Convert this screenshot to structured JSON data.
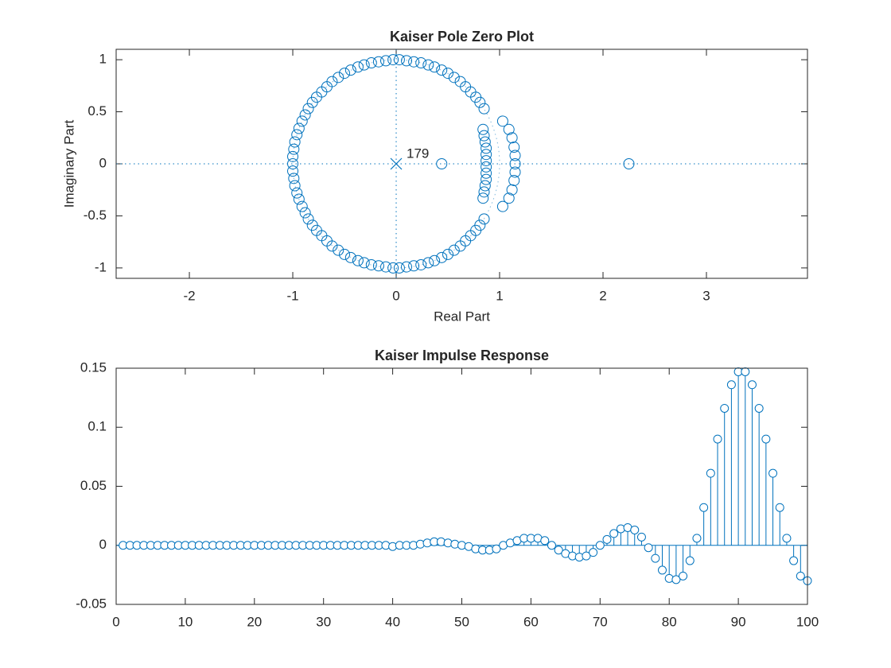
{
  "chart_data": [
    {
      "type": "pole-zero",
      "title": "Kaiser Pole Zero Plot",
      "xlabel": "Real Part",
      "ylabel": "Imaginary Part",
      "color": "#0072bd",
      "zeros": {
        "x": [
          0.85,
          0.81,
          0.77,
          0.72,
          0.67,
          0.62,
          0.56,
          0.5,
          0.44,
          0.37,
          0.31,
          0.24,
          0.17,
          0.1,
          0.03,
          -0.03,
          -0.1,
          -0.17,
          -0.24,
          -0.31,
          -0.37,
          -0.44,
          -0.5,
          -0.56,
          -0.62,
          -0.67,
          -0.72,
          -0.77,
          -0.81,
          -0.85,
          -0.88,
          -0.91,
          -0.94,
          -0.96,
          -0.98,
          -0.99,
          -1,
          -1,
          -1,
          -0.99,
          -0.98,
          -0.96,
          -0.94,
          -0.91,
          -0.88,
          -0.85,
          -0.81,
          -0.77,
          -0.72,
          -0.67,
          -0.62,
          -0.56,
          -0.5,
          -0.44,
          -0.37,
          -0.31,
          -0.24,
          -0.17,
          -0.1,
          -0.03,
          0.03,
          0.1,
          0.17,
          0.24,
          0.31,
          0.37,
          0.44,
          0.5,
          0.56,
          0.62,
          0.67,
          0.72,
          0.77,
          0.81,
          0.85,
          0.84,
          0.85,
          0.86,
          0.87,
          0.87,
          0.87,
          0.87,
          0.87,
          0.87,
          0.86,
          0.85,
          0.84,
          1.03,
          1.09,
          1.12,
          1.14,
          1.15,
          1.15,
          1.15,
          1.14,
          1.12,
          1.09,
          1.03,
          0.44,
          2.25
        ],
        "y": [
          0.53,
          0.59,
          0.64,
          0.69,
          0.74,
          0.79,
          0.83,
          0.87,
          0.9,
          0.93,
          0.95,
          0.97,
          0.98,
          0.99,
          1,
          1,
          0.99,
          0.98,
          0.97,
          0.95,
          0.93,
          0.9,
          0.87,
          0.83,
          0.79,
          0.74,
          0.69,
          0.64,
          0.59,
          0.53,
          0.47,
          0.41,
          0.34,
          0.28,
          0.21,
          0.14,
          0.07,
          0,
          -0.07,
          -0.14,
          -0.21,
          -0.28,
          -0.34,
          -0.41,
          -0.47,
          -0.53,
          -0.59,
          -0.64,
          -0.69,
          -0.74,
          -0.79,
          -0.83,
          -0.87,
          -0.9,
          -0.93,
          -0.95,
          -0.97,
          -0.98,
          -0.99,
          -1,
          -1,
          -0.99,
          -0.98,
          -0.97,
          -0.95,
          -0.93,
          -0.9,
          -0.87,
          -0.83,
          -0.79,
          -0.74,
          -0.69,
          -0.64,
          -0.59,
          -0.53,
          0.33,
          0.27,
          0.21,
          0.15,
          0.09,
          0.03,
          -0.03,
          -0.09,
          -0.15,
          -0.21,
          -0.27,
          -0.33,
          0.41,
          0.33,
          0.25,
          0.16,
          0.08,
          0,
          -0.08,
          -0.16,
          -0.25,
          -0.33,
          -0.41,
          0,
          0
        ]
      },
      "poles": {
        "x": [
          0
        ],
        "y": [
          0
        ]
      },
      "pole_label": "179",
      "xlim": [
        -2.708,
        3.977
      ],
      "ylim": [
        -1.1,
        1.1
      ],
      "xticks": [
        -2,
        -1,
        0,
        1,
        2,
        3
      ],
      "yticks": [
        -1,
        -0.5,
        0,
        0.5,
        1
      ]
    },
    {
      "type": "stem",
      "title": "Kaiser Impulse Response",
      "color": "#0072bd",
      "x": [
        1,
        2,
        3,
        4,
        5,
        6,
        7,
        8,
        9,
        10,
        11,
        12,
        13,
        14,
        15,
        16,
        17,
        18,
        19,
        20,
        21,
        22,
        23,
        24,
        25,
        26,
        27,
        28,
        29,
        30,
        31,
        32,
        33,
        34,
        35,
        36,
        37,
        38,
        39,
        40,
        41,
        42,
        43,
        44,
        45,
        46,
        47,
        48,
        49,
        50,
        51,
        52,
        53,
        54,
        55,
        56,
        57,
        58,
        59,
        60,
        61,
        62,
        63,
        64,
        65,
        66,
        67,
        68,
        69,
        70,
        71,
        72,
        73,
        74,
        75,
        76,
        77,
        78,
        79,
        80,
        81,
        82,
        83,
        84,
        85,
        86,
        87,
        88,
        89,
        90,
        91,
        92,
        93,
        94,
        95,
        96,
        97,
        98,
        99,
        100
      ],
      "values": [
        0,
        0,
        0,
        0,
        0,
        0,
        0,
        0,
        0,
        0,
        0,
        0,
        0,
        0,
        0,
        0,
        0,
        0,
        0,
        0,
        0,
        0,
        0,
        0,
        0,
        0,
        0,
        0,
        0,
        0,
        0,
        0,
        0,
        0,
        0,
        0,
        0,
        0,
        0,
        -0.001,
        0,
        0,
        0,
        0.001,
        0.002,
        0.003,
        0.003,
        0.002,
        0.001,
        0,
        -0.001,
        -0.003,
        -0.004,
        -0.004,
        -0.003,
        0,
        0.002,
        0.004,
        0.006,
        0.006,
        0.006,
        0.004,
        0,
        -0.004,
        -0.007,
        -0.009,
        -0.01,
        -0.009,
        -0.006,
        0,
        0.005,
        0.01,
        0.014,
        0.015,
        0.013,
        0.007,
        -0.002,
        -0.011,
        -0.021,
        -0.028,
        -0.029,
        -0.026,
        -0.013,
        0.006,
        0.032,
        0.061,
        0.09,
        0.116,
        0.136,
        0.147,
        0.147,
        0.136,
        0.116,
        0.09,
        0.061,
        0.032,
        0.006,
        -0.013,
        -0.026,
        -0.03
      ],
      "xlim": [
        0,
        100
      ],
      "ylim": [
        -0.05,
        0.15
      ],
      "xticks": [
        0,
        10,
        20,
        30,
        40,
        50,
        60,
        70,
        80,
        90,
        100
      ],
      "yticks": [
        -0.05,
        0,
        0.05,
        0.1,
        0.15
      ]
    }
  ]
}
